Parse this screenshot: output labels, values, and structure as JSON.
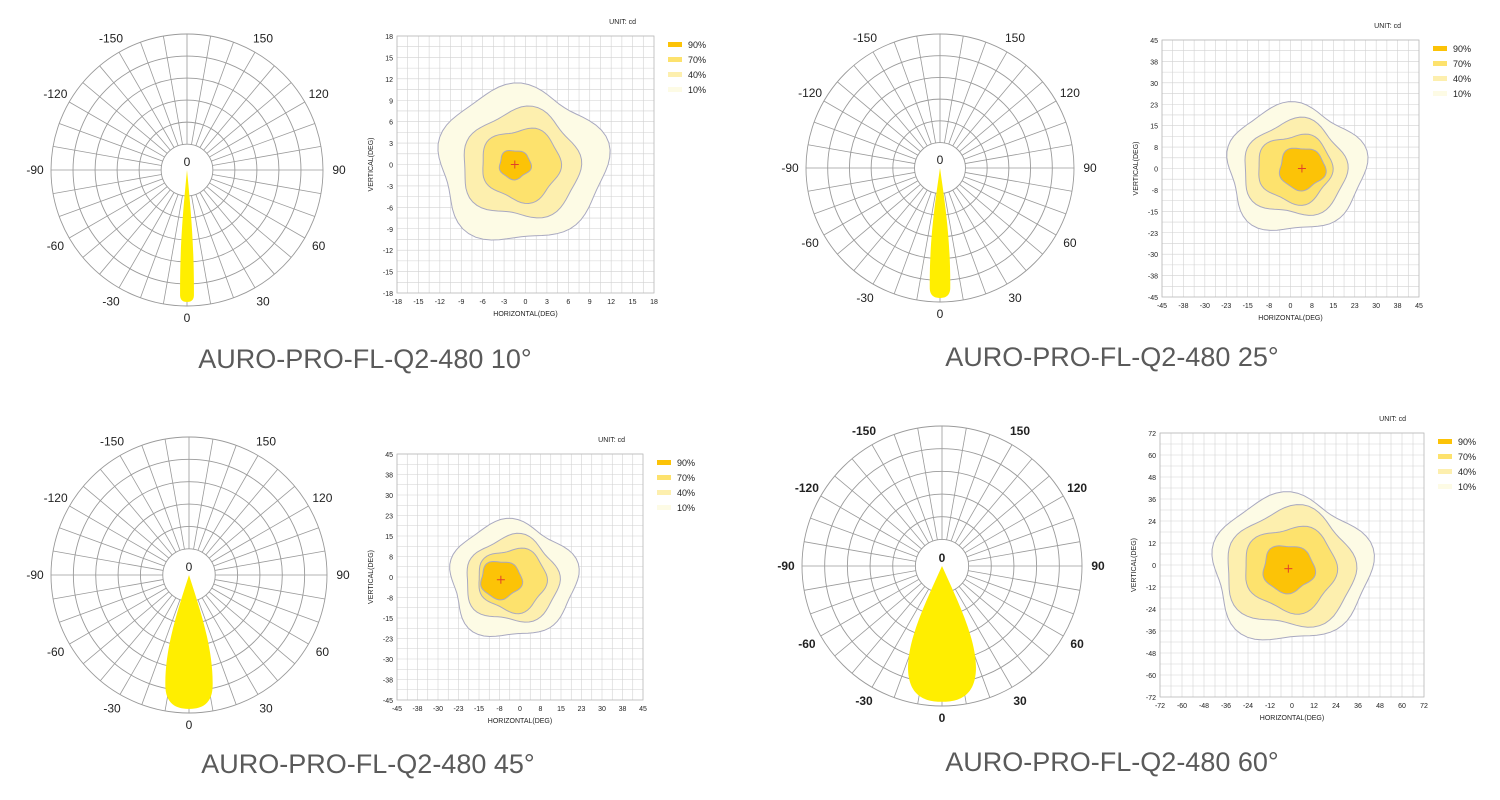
{
  "panels": [
    {
      "caption": "AURO-PRO-FL-Q2-480 10°",
      "polar": {
        "angle_labels": [
          "-150",
          "150",
          "-120",
          "120",
          "-90",
          "90",
          "-60",
          "60",
          "-30",
          "30",
          "0",
          "0"
        ],
        "bold": false,
        "beam_half_angle_deg": 3
      },
      "contour": {
        "unit_label": "UNIT: cd",
        "xlabel": "HORIZONTAL(DEG)",
        "ylabel": "VERTICAL(DEG)",
        "ticks": [
          "-18",
          "-15",
          "-12",
          "-9",
          "-6",
          "-3",
          "0",
          "3",
          "6",
          "9",
          "12",
          "15",
          "18"
        ],
        "range": [
          -18,
          18
        ],
        "legend": [
          "90%",
          "70%",
          "40%",
          "10%"
        ],
        "center": [
          -1.5,
          0
        ],
        "radii": [
          2.2,
          5.5,
          8.2,
          11.7
        ]
      }
    },
    {
      "caption": "AURO-PRO-FL-Q2-480 25°",
      "polar": {
        "angle_labels": [
          "-150",
          "150",
          "-120",
          "120",
          "-90",
          "90",
          "-60",
          "60",
          "-30",
          "30",
          "0",
          "0"
        ],
        "bold": false,
        "beam_half_angle_deg": 4.5
      },
      "contour": {
        "unit_label": "UNIT: cd",
        "xlabel": "HORIZONTAL(DEG)",
        "ylabel": "VERTICAL(DEG)",
        "ticks": [
          "-45",
          "-38",
          "-30",
          "-23",
          "-15",
          "-8",
          "0",
          "8",
          "15",
          "23",
          "30",
          "38",
          "45"
        ],
        "range": [
          -45,
          45
        ],
        "legend": [
          "90%",
          "70%",
          "40%",
          "10%"
        ],
        "center": [
          4,
          0
        ],
        "radii": [
          8,
          13,
          18,
          24
        ]
      }
    },
    {
      "caption": "AURO-PRO-FL-Q2-480 45°",
      "polar": {
        "angle_labels": [
          "-150",
          "150",
          "-120",
          "120",
          "-90",
          "90",
          "-60",
          "60",
          "-30",
          "30",
          "0",
          "0"
        ],
        "bold": false,
        "beam_half_angle_deg": 10
      },
      "contour": {
        "unit_label": "UNIT: cd",
        "xlabel": "HORIZONTAL(DEG)",
        "ylabel": "VERTICAL(DEG)",
        "ticks": [
          "-45",
          "-38",
          "-30",
          "-23",
          "-15",
          "-8",
          "0",
          "8",
          "15",
          "23",
          "30",
          "38",
          "45"
        ],
        "range": [
          -45,
          45
        ],
        "legend": [
          "90%",
          "70%",
          "40%",
          "10%"
        ],
        "center": [
          -7,
          -1
        ],
        "radii": [
          7.5,
          12.5,
          17,
          23
        ]
      }
    },
    {
      "caption": "AURO-PRO-FL-Q2-480 60°",
      "polar": {
        "angle_labels": [
          "-150",
          "150",
          "-120",
          "120",
          "-90",
          "90",
          "-60",
          "60",
          "-30",
          "30",
          "0",
          "0"
        ],
        "bold": true,
        "beam_half_angle_deg": 14
      },
      "contour": {
        "unit_label": "UNIT: cd",
        "xlabel": "HORIZONTAL(DEG)",
        "ylabel": "VERTICAL(DEG)",
        "ticks": [
          "-72",
          "-60",
          "-48",
          "-36",
          "-24",
          "-12",
          "0",
          "12",
          "24",
          "36",
          "48",
          "60",
          "72"
        ],
        "range": [
          -72,
          72
        ],
        "legend": [
          "90%",
          "70%",
          "40%",
          "10%"
        ],
        "center": [
          -2,
          -2
        ],
        "radii": [
          14,
          25,
          35,
          43
        ]
      }
    }
  ],
  "colors": {
    "beam": "#ffee00",
    "c90": "#fcc307",
    "c70": "#fde26d",
    "c40": "#fdefae",
    "c10": "#fdfbe5",
    "grid": "#9a9a9a",
    "contour_grid": "#d2d2d2",
    "contour_line": "#a9a9c0"
  },
  "chart_data": [
    {
      "type": "polar",
      "title": "AURO-PRO-FL-Q2-480 10°",
      "angles_deg": [
        -150,
        -120,
        -90,
        -60,
        -30,
        0,
        30,
        60,
        90,
        120,
        150
      ],
      "beam_angle_deg": 10
    },
    {
      "type": "heatmap",
      "title": "AURO-PRO-FL-Q2-480 10°",
      "xlabel": "HORIZONTAL(DEG)",
      "ylabel": "VERTICAL(DEG)",
      "xlim": [
        -18,
        18
      ],
      "ylim": [
        -18,
        18
      ],
      "levels": [
        "90%",
        "70%",
        "40%",
        "10%"
      ],
      "unit": "cd"
    },
    {
      "type": "polar",
      "title": "AURO-PRO-FL-Q2-480 25°",
      "angles_deg": [
        -150,
        -120,
        -90,
        -60,
        -30,
        0,
        30,
        60,
        90,
        120,
        150
      ],
      "beam_angle_deg": 25
    },
    {
      "type": "heatmap",
      "title": "AURO-PRO-FL-Q2-480 25°",
      "xlabel": "HORIZONTAL(DEG)",
      "ylabel": "VERTICAL(DEG)",
      "xlim": [
        -45,
        45
      ],
      "ylim": [
        -45,
        45
      ],
      "levels": [
        "90%",
        "70%",
        "40%",
        "10%"
      ],
      "unit": "cd"
    },
    {
      "type": "polar",
      "title": "AURO-PRO-FL-Q2-480 45°",
      "angles_deg": [
        -150,
        -120,
        -90,
        -60,
        -30,
        0,
        30,
        60,
        90,
        120,
        150
      ],
      "beam_angle_deg": 45
    },
    {
      "type": "heatmap",
      "title": "AURO-PRO-FL-Q2-480 45°",
      "xlabel": "HORIZONTAL(DEG)",
      "ylabel": "VERTICAL(DEG)",
      "xlim": [
        -45,
        45
      ],
      "ylim": [
        -45,
        45
      ],
      "levels": [
        "90%",
        "70%",
        "40%",
        "10%"
      ],
      "unit": "cd"
    },
    {
      "type": "polar",
      "title": "AURO-PRO-FL-Q2-480 60°",
      "angles_deg": [
        -150,
        -120,
        -90,
        -60,
        -30,
        0,
        30,
        60,
        90,
        120,
        150
      ],
      "beam_angle_deg": 60
    },
    {
      "type": "heatmap",
      "title": "AURO-PRO-FL-Q2-480 60°",
      "xlabel": "HORIZONTAL(DEG)",
      "ylabel": "VERTICAL(DEG)",
      "xlim": [
        -72,
        72
      ],
      "ylim": [
        -72,
        72
      ],
      "levels": [
        "90%",
        "70%",
        "40%",
        "10%"
      ],
      "unit": "cd"
    }
  ]
}
